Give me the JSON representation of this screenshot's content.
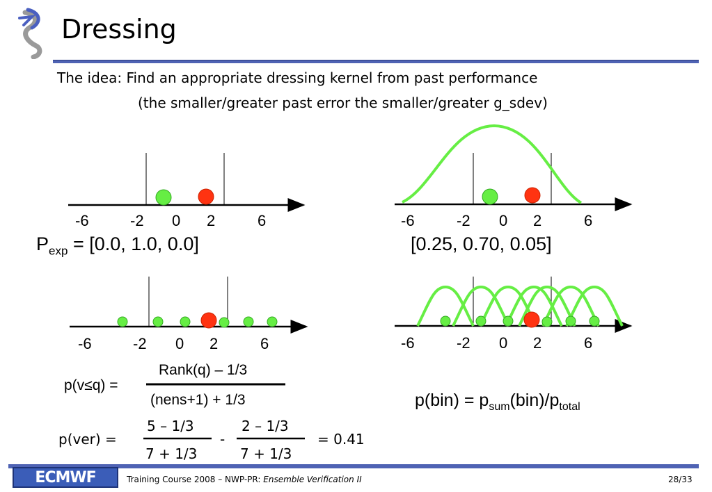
{
  "header": {
    "title": "Dressing",
    "logo_label": "ECMWF logo"
  },
  "idea": {
    "line1": "The idea: Find an appropriate dressing kernel from past performance",
    "line2": "(the smaller/greater past error the smaller/greater g_sdev)"
  },
  "axes": {
    "tick_labels": [
      "-6",
      "-2",
      "0",
      "2",
      "6"
    ]
  },
  "top_left": {
    "prob_prefix": "P",
    "prob_sub": "exp",
    "prob_values": "= [0.0,     1.0,    0.0]"
  },
  "top_right": {
    "prob_values": "[0.25,   0.70,   0.05]"
  },
  "rank_formula": {
    "lhs": "p(v≤q) =",
    "numerator": "Rank(q) – 1/3",
    "denominator": "(nens+1) + 1/3"
  },
  "ver_formula": {
    "lhs": "p(ver) =",
    "num1": "5 – 1/3",
    "den1": "7 + 1/3",
    "minus": "-",
    "num2": "2 – 1/3",
    "den2": "7 + 1/3",
    "result": "= 0.41"
  },
  "bin_formula": {
    "part1": "p(bin) = p",
    "sub1": "sum",
    "part2": "(bin)/p",
    "sub2": "total"
  },
  "footer": {
    "logo_text": "ECMWF",
    "course_text": "Training Course 2008 – NWP-PR: ",
    "course_italic": "Ensemble Verification II",
    "page": "28/33"
  },
  "colors": {
    "accent": "#4f63b4",
    "ensemble_green": "#66ee44",
    "verification_red": "#ff3311",
    "kernel_green": "#66ee44"
  }
}
